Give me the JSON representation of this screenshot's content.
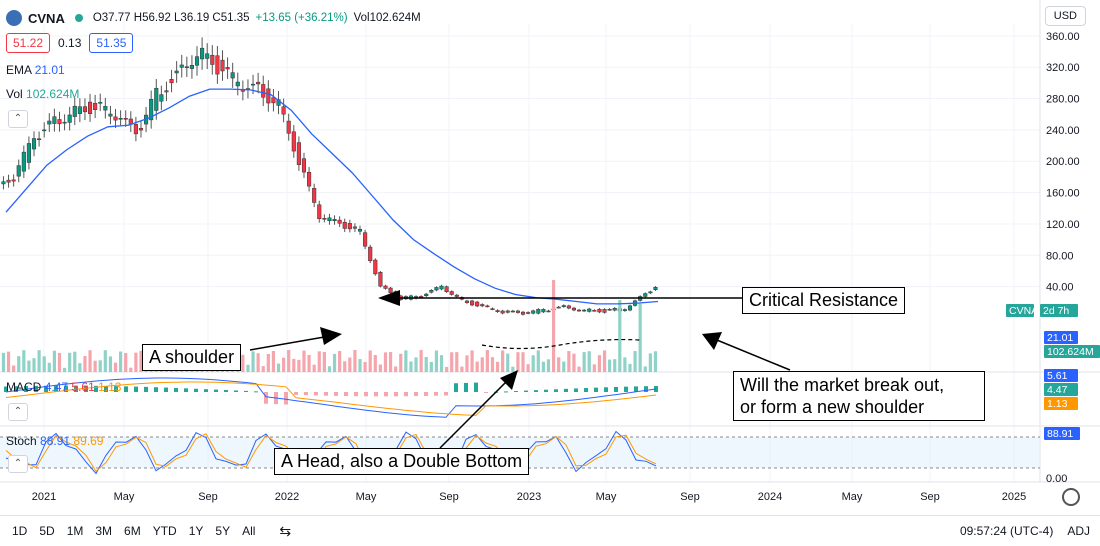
{
  "header": {
    "symbol": "CVNA",
    "ohlc": "O37.77 H56.92 L36.19 C51.35",
    "change": "+13.65 (+36.21%)",
    "vol": "Vol102.624M",
    "bid": "51.22",
    "spread": "0.13",
    "ask": "51.35",
    "ema_label": "EMA",
    "ema_value": "21.01",
    "vol_label": "Vol",
    "vol_value": "102.624M",
    "macd_label": "MACD",
    "macd_v1": "4.47",
    "macd_v2": "5.61",
    "macd_v3": "1.13",
    "stoch_label": "Stoch",
    "stoch_v1": "88.91",
    "stoch_v2": "89.69",
    "currency": "USD"
  },
  "price_axis": [
    "360.00",
    "320.00",
    "280.00",
    "240.00",
    "200.00",
    "160.00",
    "120.00",
    "80.00",
    "40.00"
  ],
  "stoch_axis": [
    "0.00"
  ],
  "price_tags": {
    "cvna": "CVNA",
    "countdown": "2d 7h",
    "ema": "21.01",
    "vol": "102.624M",
    "macd1": "5.61",
    "macd2": "4.47",
    "macd3": "1.13",
    "stoch": "88.91"
  },
  "time_labels": [
    "2021",
    "May",
    "Sep",
    "2022",
    "May",
    "Sep",
    "2023",
    "May",
    "Sep",
    "2024",
    "May",
    "Sep",
    "2025"
  ],
  "annotations": {
    "critical": "Critical Resistance",
    "shoulder": "A shoulder",
    "head": "A Head, also a Double Bottom",
    "question_line1": "Will the market break out,",
    "question_line2": "or form a new shoulder"
  },
  "toolbar": {
    "ranges": [
      "1D",
      "5D",
      "1M",
      "3M",
      "6M",
      "YTD",
      "1Y",
      "5Y",
      "All"
    ],
    "time": "09:57:24 (UTC-4)",
    "adj": "ADJ"
  },
  "colors": {
    "up": "#089981",
    "down": "#f23645",
    "ema": "#2962ff",
    "grid": "#f0f3fa"
  },
  "chart_data": {
    "type": "candlestick",
    "ylim": [
      0,
      370
    ],
    "x": [
      "2020-11",
      "2020-12",
      "2021-01",
      "2021-02",
      "2021-03",
      "2021-04",
      "2021-05",
      "2021-06",
      "2021-07",
      "2021-08",
      "2021-09",
      "2021-10",
      "2021-11",
      "2021-12",
      "2022-01",
      "2022-02",
      "2022-03",
      "2022-04",
      "2022-05",
      "2022-06",
      "2022-07",
      "2022-08",
      "2022-09",
      "2022-10",
      "2022-11",
      "2022-12",
      "2023-01",
      "2023-02",
      "2023-03",
      "2023-04",
      "2023-05",
      "2023-06",
      "2023-07"
    ],
    "close": [
      180,
      230,
      250,
      265,
      270,
      260,
      235,
      285,
      310,
      340,
      320,
      300,
      290,
      275,
      200,
      130,
      120,
      110,
      40,
      25,
      28,
      40,
      22,
      15,
      8,
      6,
      10,
      14,
      10,
      9,
      12,
      30,
      51.35
    ],
    "ema": [
      135,
      165,
      195,
      215,
      232,
      244,
      246,
      255,
      268,
      283,
      292,
      292,
      291,
      285,
      265,
      235,
      210,
      185,
      155,
      125,
      100,
      82,
      65,
      50,
      38,
      30,
      26,
      24,
      21,
      18,
      18,
      19,
      21.01
    ],
    "macd": [
      4.47,
      5.61,
      1.13
    ],
    "stoch": [
      88.91,
      89.69
    ]
  }
}
